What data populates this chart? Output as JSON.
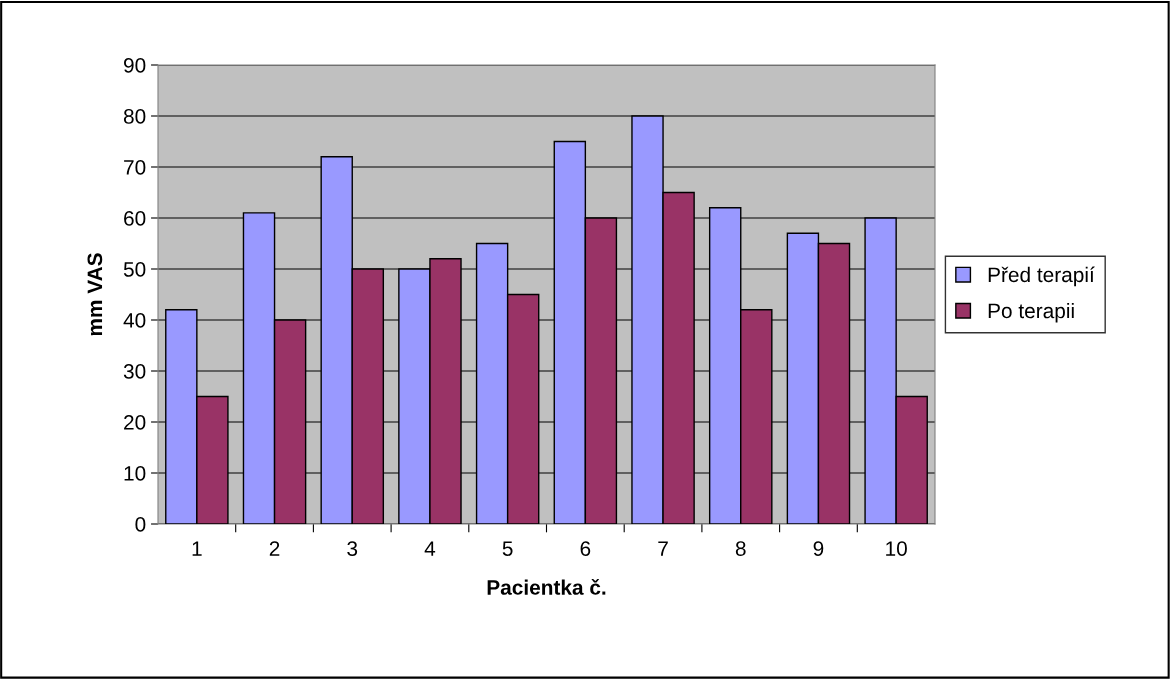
{
  "chart_data": {
    "type": "bar",
    "xlabel": "Pacientka č.",
    "ylabel": "mm VAS",
    "categories": [
      "1",
      "2",
      "3",
      "4",
      "5",
      "6",
      "7",
      "8",
      "9",
      "10"
    ],
    "series": [
      {
        "name": "Před terapií",
        "color": "#9999ff",
        "values": [
          42,
          61,
          72,
          50,
          55,
          75,
          80,
          62,
          57,
          60
        ]
      },
      {
        "name": "Po terapii",
        "color": "#993366",
        "values": [
          25,
          40,
          50,
          52,
          45,
          60,
          65,
          42,
          55,
          25
        ]
      }
    ],
    "ylim": [
      0,
      90
    ],
    "yticks": [
      0,
      10,
      20,
      30,
      40,
      50,
      60,
      70,
      80,
      90
    ],
    "grid": "y",
    "legend": "right"
  }
}
